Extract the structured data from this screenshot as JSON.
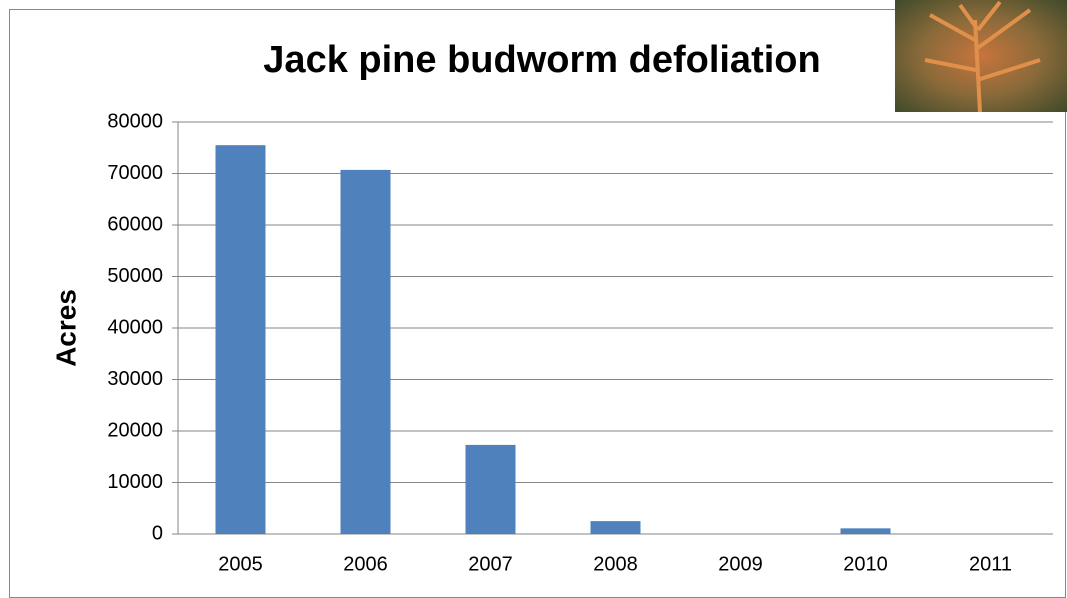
{
  "chart_data": {
    "type": "bar",
    "title": "Jack pine budworm defoliation",
    "y_label": "Acres",
    "categories": [
      "2005",
      "2006",
      "2007",
      "2008",
      "2009",
      "2010",
      "2011"
    ],
    "values": [
      75500,
      70700,
      17300,
      2500,
      0,
      1100,
      0
    ],
    "color": "#4f81bd",
    "ylim": [
      0,
      80000
    ],
    "yticks": [
      0,
      10000,
      20000,
      30000,
      40000,
      50000,
      60000,
      70000,
      80000
    ],
    "grid": true
  }
}
